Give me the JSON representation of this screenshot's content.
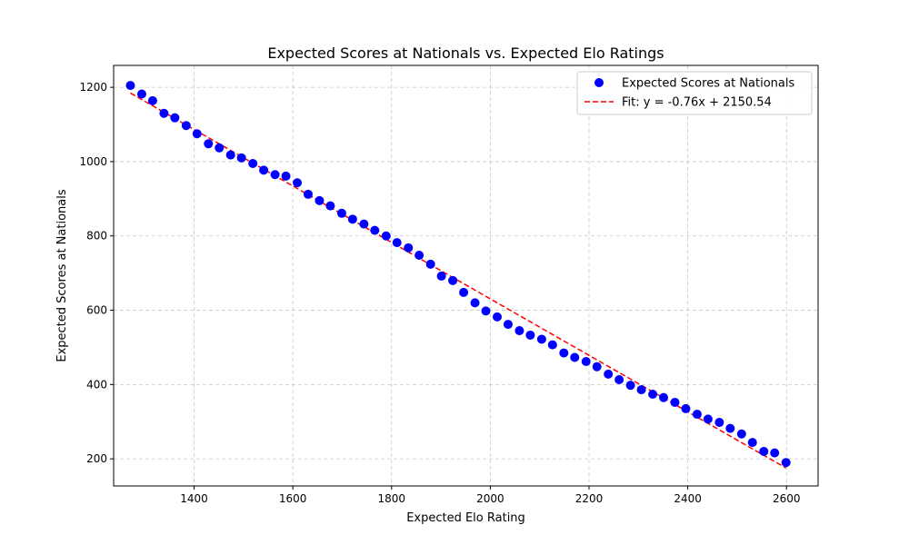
{
  "chart_data": {
    "type": "scatter",
    "title": "Expected Scores at Nationals vs. Expected Elo Ratings",
    "xlabel": "Expected Elo Rating",
    "ylabel": "Expected Scores at Nationals",
    "xlim": [
      1237,
      2664
    ],
    "ylim": [
      127,
      1259
    ],
    "xticks": [
      1400,
      1600,
      1800,
      2000,
      2200,
      2400,
      2600
    ],
    "yticks": [
      200,
      400,
      600,
      800,
      1000,
      1200
    ],
    "grid": true,
    "legend_position": "top-right",
    "series": [
      {
        "name": "Expected Scores at Nationals",
        "kind": "scatter",
        "color": "#0000ff",
        "points": [
          [
            1271,
            1205
          ],
          [
            1294,
            1182
          ],
          [
            1316,
            1164
          ],
          [
            1339,
            1130
          ],
          [
            1361,
            1118
          ],
          [
            1384,
            1097
          ],
          [
            1406,
            1075
          ],
          [
            1429,
            1048
          ],
          [
            1451,
            1037
          ],
          [
            1474,
            1018
          ],
          [
            1496,
            1010
          ],
          [
            1519,
            995
          ],
          [
            1541,
            977
          ],
          [
            1564,
            965
          ],
          [
            1586,
            961
          ],
          [
            1609,
            943
          ],
          [
            1631,
            912
          ],
          [
            1654,
            895
          ],
          [
            1676,
            881
          ],
          [
            1699,
            861
          ],
          [
            1721,
            845
          ],
          [
            1744,
            832
          ],
          [
            1766,
            815
          ],
          [
            1789,
            800
          ],
          [
            1811,
            782
          ],
          [
            1834,
            768
          ],
          [
            1856,
            748
          ],
          [
            1879,
            724
          ],
          [
            1901,
            692
          ],
          [
            1924,
            680
          ],
          [
            1946,
            648
          ],
          [
            1969,
            620
          ],
          [
            1991,
            598
          ],
          [
            2014,
            582
          ],
          [
            2036,
            562
          ],
          [
            2059,
            545
          ],
          [
            2081,
            533
          ],
          [
            2104,
            522
          ],
          [
            2126,
            507
          ],
          [
            2149,
            485
          ],
          [
            2171,
            473
          ],
          [
            2194,
            462
          ],
          [
            2216,
            448
          ],
          [
            2239,
            428
          ],
          [
            2261,
            413
          ],
          [
            2284,
            398
          ],
          [
            2306,
            386
          ],
          [
            2329,
            374
          ],
          [
            2351,
            365
          ],
          [
            2374,
            352
          ],
          [
            2396,
            335
          ],
          [
            2419,
            320
          ],
          [
            2441,
            307
          ],
          [
            2464,
            298
          ],
          [
            2486,
            282
          ],
          [
            2509,
            267
          ],
          [
            2531,
            244
          ],
          [
            2554,
            220
          ],
          [
            2576,
            216
          ],
          [
            2599,
            190
          ]
        ]
      },
      {
        "name": "Fit: y = -0.76x + 2150.54",
        "kind": "line",
        "style": "dashed",
        "color": "#ff0000",
        "slope": -0.76,
        "intercept": 2150.54,
        "x_range": [
          1271,
          2599
        ]
      }
    ]
  }
}
